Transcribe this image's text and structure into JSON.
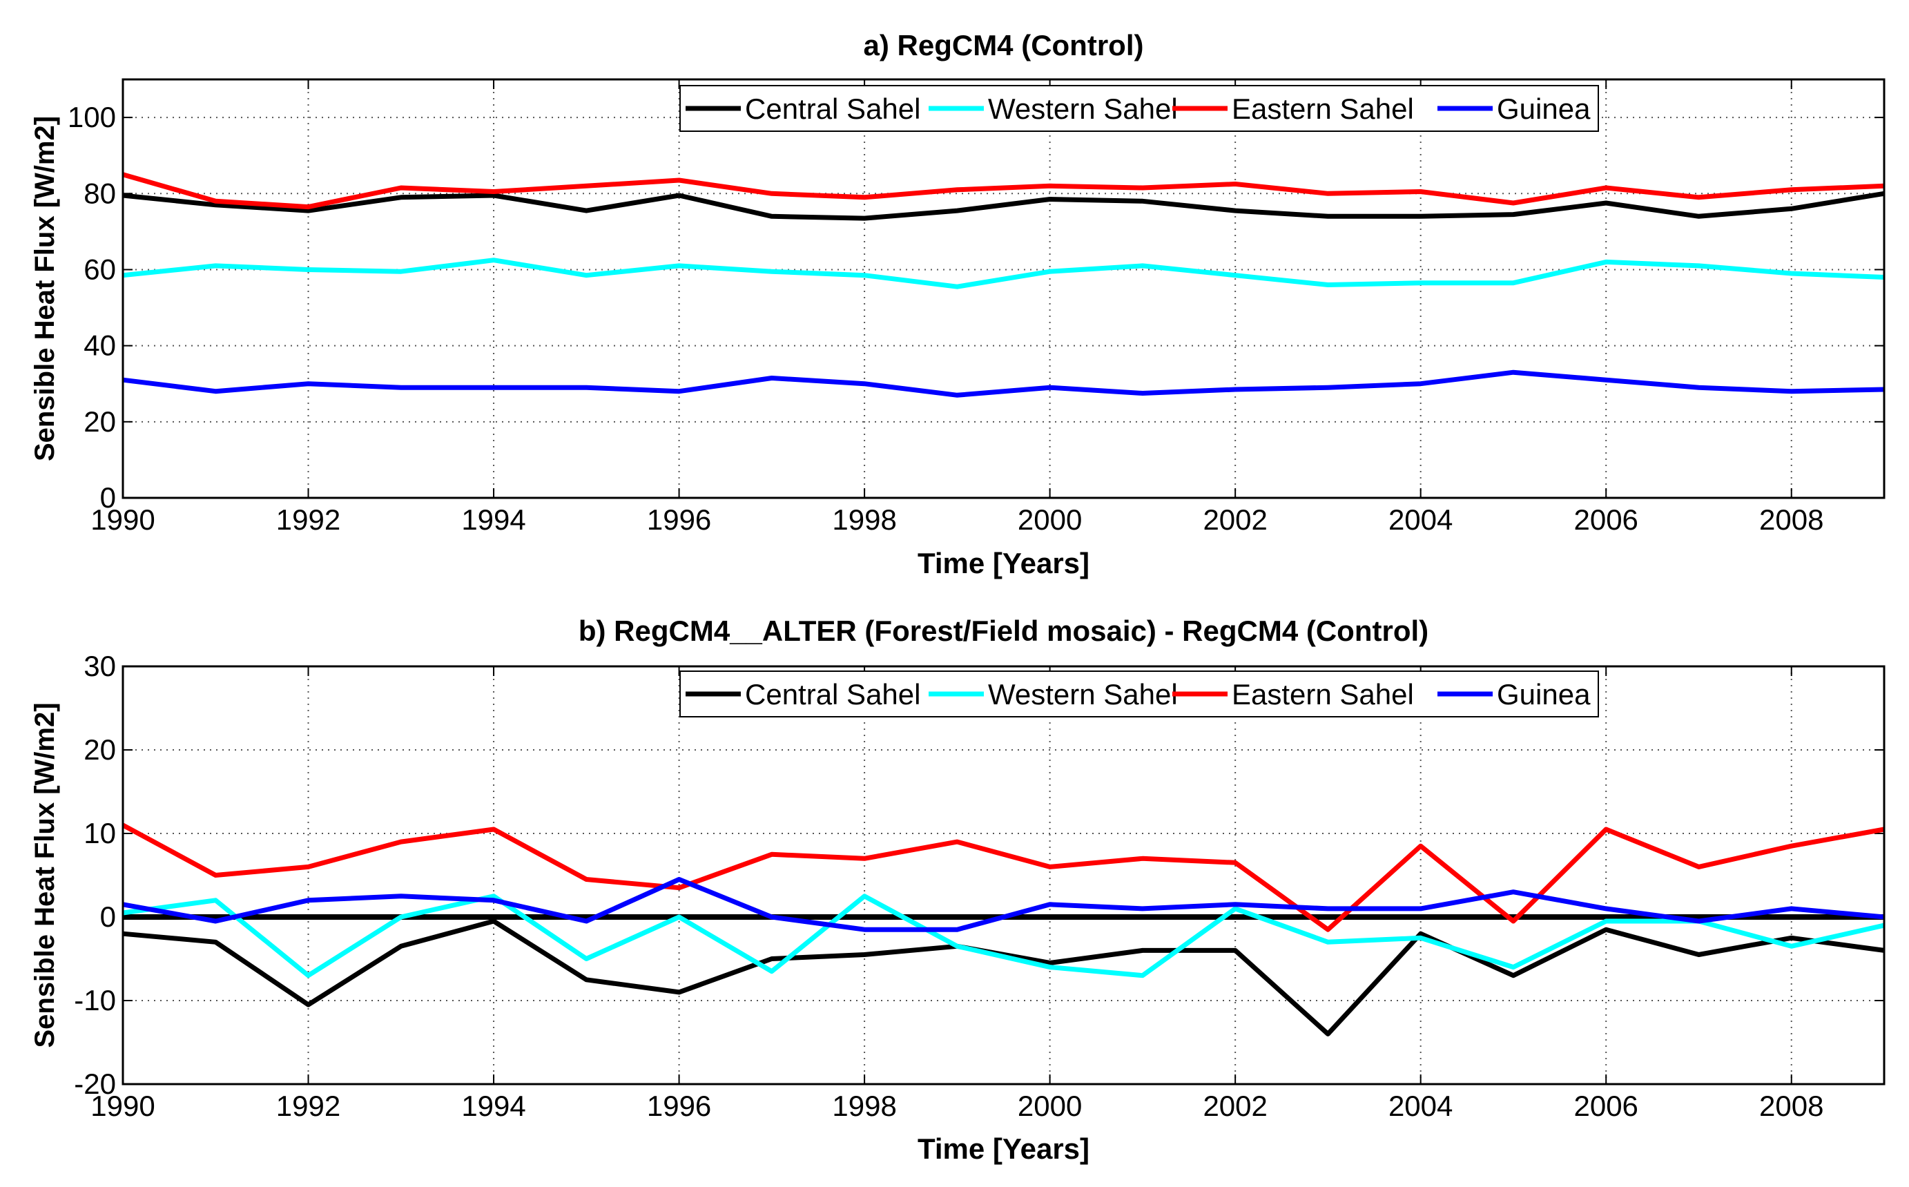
{
  "chart_data": [
    {
      "type": "line",
      "title": "a) RegCM4 (Control)",
      "xlabel": "Time [Years]",
      "ylabel": "Sensible Heat Flux [W/m2]",
      "xlim": [
        1990,
        2009
      ],
      "ylim": [
        0,
        110
      ],
      "xticks": [
        1990,
        1992,
        1994,
        1996,
        1998,
        2000,
        2002,
        2004,
        2006,
        2008
      ],
      "yticks": [
        0,
        20,
        40,
        60,
        80,
        100
      ],
      "grid": true,
      "legend_position": "top-center",
      "x": [
        1990,
        1991,
        1992,
        1993,
        1994,
        1995,
        1996,
        1997,
        1998,
        1999,
        2000,
        2001,
        2002,
        2003,
        2004,
        2005,
        2006,
        2007,
        2008,
        2009
      ],
      "series": [
        {
          "name": "Central Sahel",
          "color": "#000000",
          "values": [
            79.5,
            77,
            75.5,
            79,
            79.5,
            75.5,
            79.5,
            74,
            73.5,
            75.5,
            78.5,
            78,
            75.5,
            74,
            74,
            74.5,
            77.5,
            74,
            76,
            80
          ]
        },
        {
          "name": "Western Sahel",
          "color": "#00ffff",
          "values": [
            58.5,
            61,
            60,
            59.5,
            62.5,
            58.5,
            61,
            59.5,
            58.5,
            55.5,
            59.5,
            61,
            58.5,
            56,
            56.5,
            56.5,
            62,
            61,
            59,
            58
          ]
        },
        {
          "name": "Eastern Sahel",
          "color": "#ff0000",
          "values": [
            85,
            78,
            76.5,
            81.5,
            80.5,
            82,
            83.5,
            80,
            79,
            81,
            82,
            81.5,
            82.5,
            80,
            80.5,
            77.5,
            81.5,
            79,
            81,
            82
          ]
        },
        {
          "name": "Guinea",
          "color": "#0000ff",
          "values": [
            31,
            28,
            30,
            29,
            29,
            29,
            28,
            31.5,
            30,
            27,
            29,
            27.5,
            28.5,
            29,
            30,
            33,
            31,
            29,
            28,
            28.5
          ]
        }
      ]
    },
    {
      "type": "line",
      "title": "b) RegCM4__ALTER (Forest/Field mosaic) - RegCM4 (Control)",
      "xlabel": "Time [Years]",
      "ylabel": "Sensible Heat Flux [W/m2]",
      "xlim": [
        1990,
        2009
      ],
      "ylim": [
        -20,
        30
      ],
      "xticks": [
        1990,
        1992,
        1994,
        1996,
        1998,
        2000,
        2002,
        2004,
        2006,
        2008
      ],
      "yticks": [
        -20,
        -10,
        0,
        10,
        20,
        30
      ],
      "grid": true,
      "legend_position": "top-center",
      "x": [
        1990,
        1991,
        1992,
        1993,
        1994,
        1995,
        1996,
        1997,
        1998,
        1999,
        2000,
        2001,
        2002,
        2003,
        2004,
        2005,
        2006,
        2007,
        2008,
        2009
      ],
      "series": [
        {
          "name": "Central Sahel",
          "color": "#000000",
          "values": [
            -2,
            -3,
            -10.5,
            -3.5,
            -0.5,
            -7.5,
            -9,
            -5,
            -4.5,
            -3.5,
            -5.5,
            -4,
            -4,
            -14,
            -2,
            -7,
            -1.5,
            -4.5,
            -2.5,
            -4
          ]
        },
        {
          "name": "Western Sahel",
          "color": "#00ffff",
          "values": [
            0.5,
            2,
            -7,
            0,
            2.5,
            -5,
            0,
            -6.5,
            2.5,
            -3.5,
            -6,
            -7,
            1,
            -3,
            -2.5,
            -6,
            -0.5,
            -0.5,
            -3.5,
            -1
          ]
        },
        {
          "name": "Eastern Sahel",
          "color": "#ff0000",
          "values": [
            11,
            5,
            6,
            9,
            10.5,
            4.5,
            3.5,
            7.5,
            7,
            9,
            6,
            7,
            6.5,
            -1.5,
            8.5,
            -0.5,
            10.5,
            6,
            8.5,
            10.5
          ]
        },
        {
          "name": "Guinea",
          "color": "#0000ff",
          "values": [
            1.5,
            -0.5,
            2,
            2.5,
            2,
            -0.5,
            4.5,
            0,
            -1.5,
            -1.5,
            1.5,
            1,
            1.5,
            1,
            1,
            3,
            1,
            -0.5,
            1,
            0
          ]
        },
        {
          "name": "Zero line",
          "color": "#000000",
          "values": [
            0,
            0,
            0,
            0,
            0,
            0,
            0,
            0,
            0,
            0,
            0,
            0,
            0,
            0,
            0,
            0,
            0,
            0,
            0,
            0
          ],
          "reference": true
        }
      ]
    }
  ]
}
